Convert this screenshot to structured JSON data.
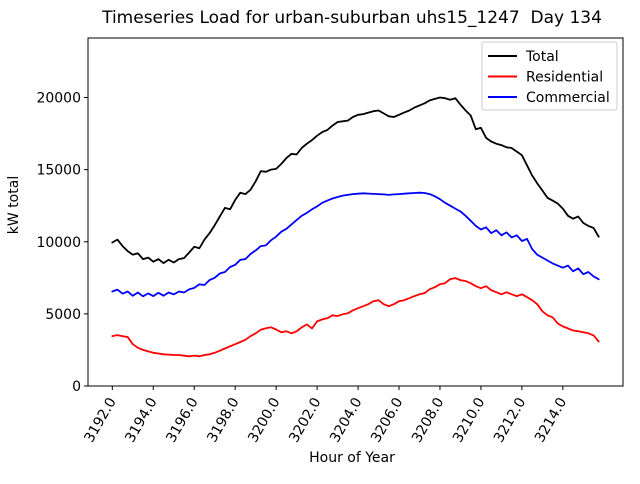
{
  "figure": {
    "title": "Timeseries Load for urban-suburban uhs15_1247  Day 134",
    "x_axis": {
      "label": "Hour of Year",
      "tick_labels": [
        "3192.0",
        "3194.0",
        "3196.0",
        "3198.0",
        "3200.0",
        "3202.0",
        "3204.0",
        "3206.0",
        "3208.0",
        "3210.0",
        "3212.0",
        "3214.0"
      ]
    },
    "y_axis": {
      "label": "kW total",
      "tick_labels": [
        "0",
        "5000",
        "10000",
        "15000",
        "20000"
      ]
    },
    "legend": {
      "entries": [
        "Total",
        "Residential",
        "Commercial"
      ],
      "colors": [
        "#000000",
        "#ff0000",
        "#0000ff"
      ]
    }
  },
  "chart_data": {
    "type": "line",
    "title": "Timeseries Load for urban-suburban uhs15_1247  Day 134",
    "xlabel": "Hour of Year",
    "ylabel": "kW total",
    "grid": false,
    "legend_position": "upper right",
    "x_start": 3192.0,
    "x_step": 0.25,
    "xlim": [
      3190.8125,
      3216.9375
    ],
    "ylim": [
      0,
      24125
    ],
    "xticks": [
      3192,
      3194,
      3196,
      3198,
      3200,
      3202,
      3204,
      3206,
      3208,
      3210,
      3212,
      3214
    ],
    "yticks": [
      0,
      5000,
      10000,
      15000,
      20000
    ],
    "series": [
      {
        "name": "Total",
        "color": "#000000",
        "values": [
          9950,
          10150,
          9700,
          9350,
          9100,
          9200,
          8800,
          8900,
          8620,
          8800,
          8520,
          8750,
          8560,
          8800,
          8870,
          9250,
          9650,
          9550,
          10150,
          10600,
          11150,
          11750,
          12350,
          12250,
          12900,
          13400,
          13300,
          13600,
          14200,
          14900,
          14850,
          15000,
          15050,
          15400,
          15800,
          16100,
          16050,
          16500,
          16800,
          17050,
          17350,
          17600,
          17750,
          18050,
          18300,
          18350,
          18400,
          18650,
          18800,
          18850,
          18950,
          19050,
          19100,
          18900,
          18700,
          18650,
          18800,
          18950,
          19100,
          19300,
          19450,
          19600,
          19800,
          19900,
          20000,
          19950,
          19850,
          19950,
          19500,
          19100,
          18750,
          17800,
          17900,
          17200,
          16950,
          16800,
          16700,
          16550,
          16500,
          16250,
          16000,
          15300,
          14600,
          14050,
          13550,
          13050,
          12850,
          12650,
          12300,
          11800,
          11600,
          11750,
          11300,
          11100,
          10950,
          10350
        ]
      },
      {
        "name": "Residential",
        "color": "#ff0000",
        "values": [
          3460,
          3530,
          3450,
          3400,
          2900,
          2650,
          2500,
          2400,
          2300,
          2250,
          2200,
          2180,
          2150,
          2150,
          2100,
          2060,
          2110,
          2060,
          2150,
          2200,
          2300,
          2450,
          2600,
          2750,
          2900,
          3050,
          3200,
          3450,
          3650,
          3900,
          4000,
          4070,
          3920,
          3720,
          3790,
          3650,
          3790,
          4060,
          4270,
          3990,
          4480,
          4620,
          4690,
          4900,
          4850,
          4970,
          5040,
          5250,
          5390,
          5530,
          5670,
          5880,
          5950,
          5670,
          5530,
          5670,
          5880,
          5950,
          6090,
          6230,
          6360,
          6440,
          6710,
          6850,
          7060,
          7130,
          7410,
          7480,
          7340,
          7270,
          7130,
          6920,
          6780,
          6920,
          6640,
          6500,
          6360,
          6500,
          6360,
          6230,
          6360,
          6160,
          5950,
          5670,
          5180,
          4900,
          4760,
          4340,
          4130,
          3990,
          3850,
          3790,
          3720,
          3650,
          3510,
          3080
        ]
      },
      {
        "name": "Commercial",
        "color": "#0000ff",
        "values": [
          6550,
          6680,
          6400,
          6550,
          6250,
          6480,
          6220,
          6420,
          6230,
          6460,
          6260,
          6480,
          6350,
          6550,
          6480,
          6700,
          6800,
          7050,
          7000,
          7350,
          7500,
          7800,
          7900,
          8250,
          8400,
          8750,
          8800,
          9150,
          9400,
          9700,
          9750,
          10100,
          10350,
          10700,
          10900,
          11200,
          11500,
          11800,
          12000,
          12250,
          12450,
          12700,
          12850,
          13000,
          13100,
          13200,
          13250,
          13300,
          13330,
          13360,
          13340,
          13320,
          13300,
          13280,
          13250,
          13280,
          13300,
          13330,
          13360,
          13380,
          13400,
          13380,
          13300,
          13150,
          12950,
          12700,
          12500,
          12300,
          12100,
          11800,
          11450,
          11100,
          10850,
          11000,
          10600,
          10800,
          10450,
          10650,
          10300,
          10450,
          10050,
          10200,
          9500,
          9100,
          8900,
          8700,
          8500,
          8350,
          8200,
          8350,
          7950,
          8150,
          7750,
          7900,
          7600,
          7400
        ]
      }
    ]
  }
}
